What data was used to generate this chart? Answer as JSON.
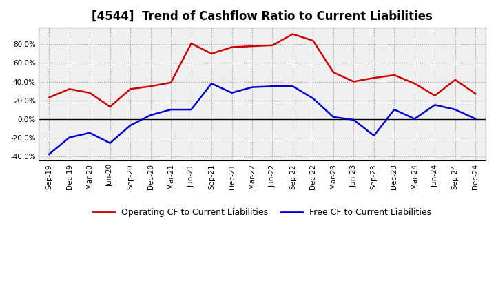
{
  "title": "[4544]  Trend of Cashflow Ratio to Current Liabilities",
  "x_labels": [
    "Sep-19",
    "Dec-19",
    "Mar-20",
    "Jun-20",
    "Sep-20",
    "Dec-20",
    "Mar-21",
    "Jun-21",
    "Sep-21",
    "Dec-21",
    "Mar-22",
    "Jun-22",
    "Sep-22",
    "Dec-22",
    "Mar-23",
    "Jun-23",
    "Sep-23",
    "Dec-23",
    "Mar-24",
    "Jun-24",
    "Sep-24",
    "Dec-24"
  ],
  "operating_cf": [
    23,
    32,
    28,
    13,
    32,
    35,
    39,
    81,
    70,
    77,
    78,
    79,
    91,
    84,
    50,
    40,
    44,
    47,
    38,
    25,
    42,
    27
  ],
  "free_cf": [
    -38,
    -20,
    -15,
    -26,
    -7,
    4,
    10,
    10,
    38,
    28,
    34,
    35,
    35,
    22,
    2,
    -1,
    -18,
    10,
    0,
    15,
    10,
    0
  ],
  "operating_color": "#cc0000",
  "free_color": "#0000cc",
  "ylim_min": -45,
  "ylim_max": 98,
  "yticks": [
    -40,
    -20,
    0,
    20,
    40,
    60,
    80
  ],
  "legend_operating": "Operating CF to Current Liabilities",
  "legend_free": "Free CF to Current Liabilities",
  "bg_color": "#ffffff",
  "plot_bg_color": "#f0f0f0",
  "grid_color": "#999999",
  "title_fontsize": 12,
  "tick_fontsize": 7.5,
  "legend_fontsize": 9
}
